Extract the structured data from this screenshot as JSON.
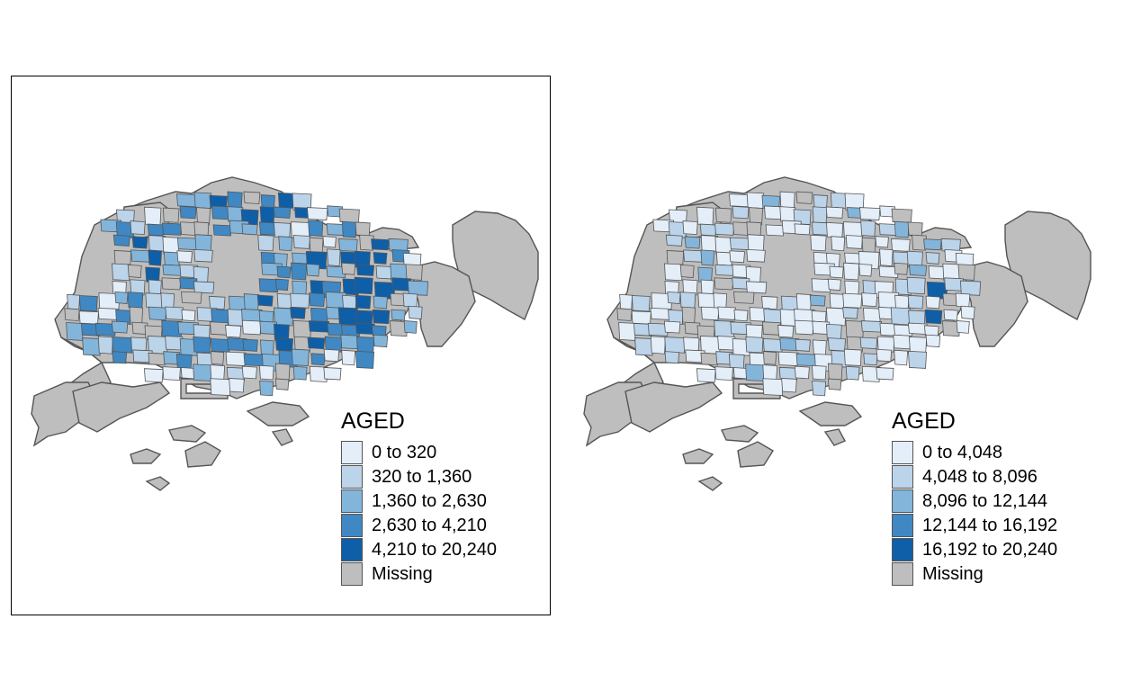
{
  "maps": [
    {
      "id": "left",
      "framed": true,
      "legend": {
        "title": "AGED",
        "items": [
          {
            "label": "0 to 320",
            "color": "#e4eef9"
          },
          {
            "label": "320 to 1,360",
            "color": "#bcd4ea"
          },
          {
            "label": "1,360 to 2,630",
            "color": "#83b5db"
          },
          {
            "label": "2,630 to 4,210",
            "color": "#3f88c3"
          },
          {
            "label": "4,210 to 20,240",
            "color": "#0f5fa8"
          },
          {
            "label": "Missing",
            "color": "#bebebe"
          }
        ]
      }
    },
    {
      "id": "right",
      "framed": false,
      "legend": {
        "title": "AGED",
        "items": [
          {
            "label": "0 to 4,048",
            "color": "#e4eef9"
          },
          {
            "label": "4,048 to 8,096",
            "color": "#bcd4ea"
          },
          {
            "label": "8,096 to 12,144",
            "color": "#83b5db"
          },
          {
            "label": "12,144 to 16,192",
            "color": "#3f88c3"
          },
          {
            "label": "16,192 to 20,240",
            "color": "#0f5fa8"
          },
          {
            "label": "Missing",
            "color": "#bebebe"
          }
        ]
      }
    }
  ],
  "colors": {
    "missing": "#bebebe",
    "outline": "#555555",
    "panel_border": "#000000"
  }
}
